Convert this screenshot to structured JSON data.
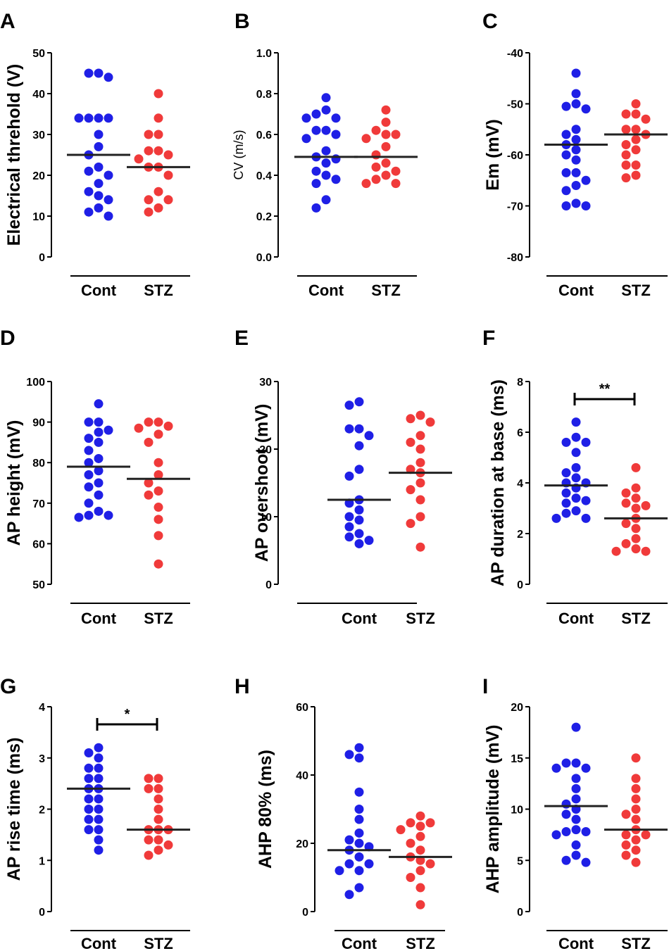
{
  "chart_data": [
    {
      "panel": "A",
      "type": "scatter",
      "ylabel": "Electrical threhold (V)",
      "ylim": [
        0,
        50
      ],
      "yticks": [
        0,
        10,
        20,
        30,
        40,
        50
      ],
      "categories": [
        "Cont",
        "STZ"
      ],
      "series": [
        {
          "name": "Cont",
          "color": "#1f1fe6",
          "mean": 25,
          "values": [
            45,
            45,
            44,
            34,
            34,
            34,
            34,
            30,
            27,
            25,
            22,
            21,
            20,
            18,
            16,
            15,
            14,
            12,
            11,
            10
          ]
        },
        {
          "name": "STZ",
          "color": "#f03a3a",
          "mean": 22,
          "values": [
            40,
            34,
            30,
            30,
            26,
            26,
            25,
            24,
            22,
            22,
            20,
            16,
            14,
            14,
            12,
            11
          ]
        }
      ]
    },
    {
      "panel": "B",
      "type": "scatter",
      "ylabel": "CV (m/s)",
      "ylim": [
        0,
        1
      ],
      "yticks": [
        "0.0",
        "0.2",
        "0.4",
        "0.6",
        "0.8",
        "1.0"
      ],
      "categories": [
        "Cont",
        "STZ"
      ],
      "series": [
        {
          "name": "Cont",
          "color": "#1f1fe6",
          "mean": 0.49,
          "values": [
            0.78,
            0.72,
            0.7,
            0.68,
            0.68,
            0.62,
            0.62,
            0.6,
            0.58,
            0.52,
            0.49,
            0.48,
            0.46,
            0.42,
            0.4,
            0.38,
            0.36,
            0.28,
            0.24
          ]
        },
        {
          "name": "STZ",
          "color": "#f03a3a",
          "mean": 0.49,
          "values": [
            0.72,
            0.66,
            0.62,
            0.6,
            0.6,
            0.58,
            0.54,
            0.5,
            0.46,
            0.44,
            0.42,
            0.4,
            0.38,
            0.36,
            0.36
          ]
        }
      ]
    },
    {
      "panel": "C",
      "type": "scatter",
      "ylabel": "Em (mV)",
      "ylim": [
        -80,
        -40
      ],
      "yticks": [
        -80,
        -70,
        -60,
        -50,
        -40
      ],
      "categories": [
        "Cont",
        "STZ"
      ],
      "series": [
        {
          "name": "Cont",
          "color": "#1f1fe6",
          "mean": -58,
          "values": [
            -44,
            -48,
            -50,
            -50.5,
            -51,
            -55,
            -56,
            -57,
            -58,
            -59,
            -60,
            -61,
            -63.5,
            -63.5,
            -65,
            -66,
            -67,
            -69.5,
            -70,
            -70
          ]
        },
        {
          "name": "STZ",
          "color": "#f03a3a",
          "mean": -56,
          "values": [
            -50,
            -52,
            -52,
            -53,
            -55,
            -55,
            -56,
            -57,
            -58,
            -59,
            -60,
            -62,
            -62,
            -64,
            -64.5
          ]
        }
      ]
    },
    {
      "panel": "D",
      "type": "scatter",
      "ylabel": "AP height  (mV)",
      "ylim": [
        50,
        100
      ],
      "yticks": [
        50,
        60,
        70,
        80,
        90,
        100
      ],
      "categories": [
        "Cont",
        "STZ"
      ],
      "series": [
        {
          "name": "Cont",
          "color": "#1f1fe6",
          "mean": 79,
          "values": [
            94.5,
            90,
            90,
            88,
            87.5,
            86,
            85,
            83,
            81,
            80,
            78,
            77,
            75,
            74,
            72,
            70,
            68,
            67,
            67,
            66.5
          ]
        },
        {
          "name": "STZ",
          "color": "#f03a3a",
          "mean": 76,
          "values": [
            90,
            90,
            89,
            88.5,
            87,
            85,
            80,
            77,
            75,
            73,
            72,
            69,
            66,
            62,
            55
          ]
        }
      ]
    },
    {
      "panel": "E",
      "type": "scatter",
      "ylabel": "AP overshoot  (mV)",
      "ylim": [
        0,
        30
      ],
      "yticks": [
        0,
        10,
        20,
        30
      ],
      "categories": [
        "Cont",
        "STZ"
      ],
      "series": [
        {
          "name": "Cont",
          "color": "#1f1fe6",
          "mean": 12.5,
          "values": [
            27,
            26.5,
            23,
            23,
            22,
            20.5,
            17,
            16,
            12.5,
            12,
            11,
            10,
            9.5,
            8.5,
            7.5,
            7,
            6.5,
            6
          ]
        },
        {
          "name": "STZ",
          "color": "#f03a3a",
          "mean": 16.5,
          "values": [
            25,
            24.5,
            24,
            22,
            21,
            20,
            18,
            17,
            16.5,
            15,
            14,
            12.5,
            10,
            9,
            5.5
          ]
        }
      ]
    },
    {
      "panel": "F",
      "type": "scatter",
      "ylabel": "AP duration at base (ms)",
      "ylim": [
        0,
        8
      ],
      "yticks": [
        0,
        2,
        4,
        6,
        8
      ],
      "categories": [
        "Cont",
        "STZ"
      ],
      "significance": "**",
      "series": [
        {
          "name": "Cont",
          "color": "#1f1fe6",
          "mean": 3.9,
          "values": [
            6.4,
            5.8,
            5.6,
            5.6,
            5.2,
            4.6,
            4.4,
            4.2,
            4.0,
            4.0,
            3.8,
            3.6,
            3.4,
            3.3,
            3.2,
            2.9,
            2.8,
            2.6,
            2.6
          ]
        },
        {
          "name": "STZ",
          "color": "#f03a3a",
          "mean": 2.6,
          "values": [
            4.6,
            3.8,
            3.6,
            3.4,
            3.2,
            3.1,
            3.0,
            2.6,
            2.4,
            2.2,
            1.8,
            1.6,
            1.4,
            1.3,
            1.3
          ]
        }
      ]
    },
    {
      "panel": "G",
      "type": "scatter",
      "ylabel": "AP rise time  (ms)",
      "ylim": [
        0,
        4
      ],
      "yticks": [
        0,
        1,
        2,
        3,
        4
      ],
      "categories": [
        "Cont",
        "STZ"
      ],
      "significance": "*",
      "series": [
        {
          "name": "Cont",
          "color": "#1f1fe6",
          "mean": 2.4,
          "values": [
            3.2,
            3.1,
            3.0,
            2.8,
            2.8,
            2.6,
            2.6,
            2.4,
            2.4,
            2.2,
            2.2,
            2.0,
            2.0,
            1.8,
            1.8,
            1.6,
            1.6,
            1.4,
            1.2
          ]
        },
        {
          "name": "STZ",
          "color": "#f03a3a",
          "mean": 1.6,
          "values": [
            2.6,
            2.6,
            2.4,
            2.4,
            2.2,
            2.0,
            1.8,
            1.6,
            1.6,
            1.6,
            1.4,
            1.4,
            1.3,
            1.2,
            1.1
          ]
        }
      ]
    },
    {
      "panel": "H",
      "type": "scatter",
      "ylabel": "AHP 80%  (ms)",
      "ylim": [
        0,
        60
      ],
      "yticks": [
        0,
        20,
        40,
        60
      ],
      "categories": [
        "Cont",
        "STZ"
      ],
      "series": [
        {
          "name": "Cont",
          "color": "#1f1fe6",
          "mean": 18,
          "values": [
            48,
            46,
            45,
            35,
            30,
            27,
            23,
            21,
            20,
            19,
            18,
            16,
            14,
            14,
            12,
            12,
            7,
            5
          ]
        },
        {
          "name": "STZ",
          "color": "#f03a3a",
          "mean": 16,
          "values": [
            28,
            26,
            26,
            25,
            24,
            22,
            20,
            18,
            16,
            15,
            14,
            12,
            10,
            7,
            2
          ]
        }
      ]
    },
    {
      "panel": "I",
      "type": "scatter",
      "ylabel": "AHP amplitude (mV)",
      "ylim": [
        0,
        20
      ],
      "yticks": [
        0,
        5,
        10,
        15,
        20
      ],
      "categories": [
        "Cont",
        "STZ"
      ],
      "series": [
        {
          "name": "Cont",
          "color": "#1f1fe6",
          "mean": 10.3,
          "values": [
            18,
            14.5,
            14.5,
            14,
            14,
            13,
            12,
            11,
            10.5,
            10,
            9.5,
            9,
            8,
            7.8,
            7.8,
            7.5,
            6.5,
            5.5,
            5,
            4.8
          ]
        },
        {
          "name": "STZ",
          "color": "#f03a3a",
          "mean": 8,
          "values": [
            15,
            13,
            12,
            11,
            10,
            9.5,
            9,
            8,
            7.5,
            7.5,
            7,
            6.5,
            6,
            5.5,
            4.8
          ]
        }
      ]
    }
  ]
}
